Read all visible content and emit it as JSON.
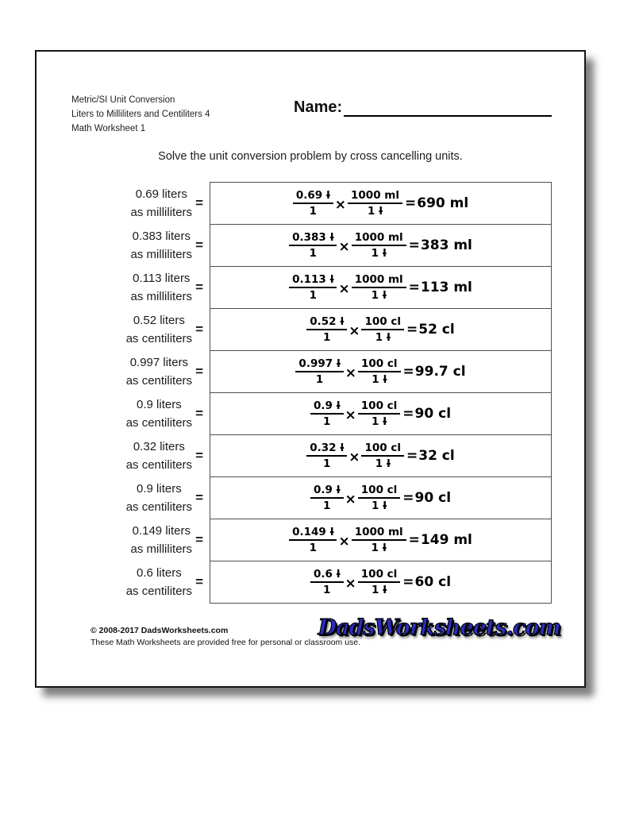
{
  "header": {
    "lines": [
      "Metric/SI Unit Conversion",
      "Liters to Milliliters and Centiliters 4",
      "Math Worksheet 1"
    ],
    "name_label": "Name:"
  },
  "instruction": "Solve the unit conversion problem by cross cancelling units.",
  "problems": [
    {
      "quantity": "0.69 liters",
      "as_unit": "as milliliters",
      "label_equals": "=",
      "n1": "0.69",
      "n1_unit": "l",
      "d1": "1",
      "times": "×",
      "n2": "1000 ml",
      "d2": "1",
      "d2_unit": "l",
      "eq": "=",
      "result": "690 ml"
    },
    {
      "quantity": "0.383 liters",
      "as_unit": "as milliliters",
      "label_equals": "=",
      "n1": "0.383",
      "n1_unit": "l",
      "d1": "1",
      "times": "×",
      "n2": "1000 ml",
      "d2": "1",
      "d2_unit": "l",
      "eq": "=",
      "result": "383 ml"
    },
    {
      "quantity": "0.113 liters",
      "as_unit": "as milliliters",
      "label_equals": "=",
      "n1": "0.113",
      "n1_unit": "l",
      "d1": "1",
      "times": "×",
      "n2": "1000 ml",
      "d2": "1",
      "d2_unit": "l",
      "eq": "=",
      "result": "113 ml"
    },
    {
      "quantity": "0.52 liters",
      "as_unit": "as centiliters",
      "label_equals": "=",
      "n1": "0.52",
      "n1_unit": "l",
      "d1": "1",
      "times": "×",
      "n2": "100 cl",
      "d2": "1",
      "d2_unit": "l",
      "eq": "=",
      "result": "52 cl"
    },
    {
      "quantity": "0.997 liters",
      "as_unit": "as centiliters",
      "label_equals": "=",
      "n1": "0.997",
      "n1_unit": "l",
      "d1": "1",
      "times": "×",
      "n2": "100 cl",
      "d2": "1",
      "d2_unit": "l",
      "eq": "=",
      "result": "99.7 cl"
    },
    {
      "quantity": "0.9 liters",
      "as_unit": "as centiliters",
      "label_equals": "=",
      "n1": "0.9",
      "n1_unit": "l",
      "d1": "1",
      "times": "×",
      "n2": "100 cl",
      "d2": "1",
      "d2_unit": "l",
      "eq": "=",
      "result": "90 cl"
    },
    {
      "quantity": "0.32 liters",
      "as_unit": "as centiliters",
      "label_equals": "=",
      "n1": "0.32",
      "n1_unit": "l",
      "d1": "1",
      "times": "×",
      "n2": "100 cl",
      "d2": "1",
      "d2_unit": "l",
      "eq": "=",
      "result": "32 cl"
    },
    {
      "quantity": "0.9 liters",
      "as_unit": "as centiliters",
      "label_equals": "=",
      "n1": "0.9",
      "n1_unit": "l",
      "d1": "1",
      "times": "×",
      "n2": "100 cl",
      "d2": "1",
      "d2_unit": "l",
      "eq": "=",
      "result": "90 cl"
    },
    {
      "quantity": "0.149 liters",
      "as_unit": "as milliliters",
      "label_equals": "=",
      "n1": "0.149",
      "n1_unit": "l",
      "d1": "1",
      "times": "×",
      "n2": "1000 ml",
      "d2": "1",
      "d2_unit": "l",
      "eq": "=",
      "result": "149 ml"
    },
    {
      "quantity": "0.6 liters",
      "as_unit": "as centiliters",
      "label_equals": "=",
      "n1": "0.6",
      "n1_unit": "l",
      "d1": "1",
      "times": "×",
      "n2": "100 cl",
      "d2": "1",
      "d2_unit": "l",
      "eq": "=",
      "result": "60 cl"
    }
  ],
  "footer": {
    "copyright": "© 2008-2017 DadsWorksheets.com",
    "license": "These Math Worksheets are provided free for personal or classroom use.",
    "logo_text": "DadsWorksheets.com"
  },
  "colors": {
    "logo_blue": "#2d2dbe",
    "box_border": "#4f4f4f",
    "ink": "#000000"
  }
}
